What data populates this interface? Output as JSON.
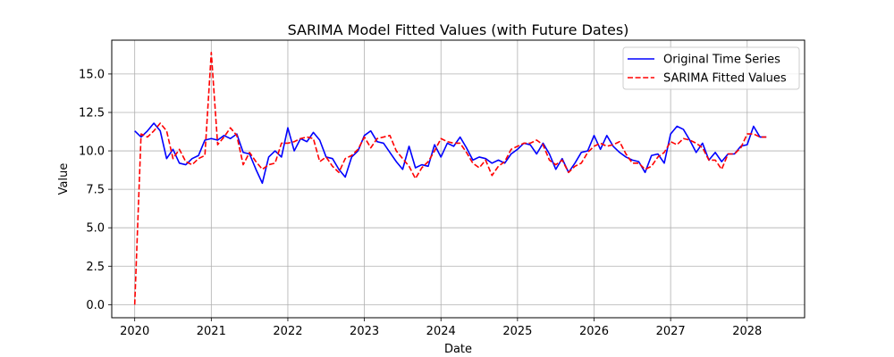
{
  "chart_data": {
    "type": "line",
    "title": "SARIMA Model Fitted Values (with Future Dates)",
    "xlabel": "Date",
    "ylabel": "Value",
    "xlim": [
      2019.7,
      2028.75
    ],
    "ylim": [
      -0.85,
      17.2
    ],
    "x_ticks": [
      2020,
      2021,
      2022,
      2023,
      2024,
      2025,
      2026,
      2027,
      2028
    ],
    "x_tick_labels": [
      "2020",
      "2021",
      "2022",
      "2023",
      "2024",
      "2025",
      "2026",
      "2027",
      "2028"
    ],
    "y_ticks": [
      0,
      2.5,
      5,
      7.5,
      10,
      12.5,
      15
    ],
    "y_tick_labels": [
      "0.0",
      "2.5",
      "5.0",
      "7.5",
      "10.0",
      "12.5",
      "15.0"
    ],
    "grid": true,
    "legend_position": "top-right",
    "x_start": "2020-01",
    "x_frequency": "monthly",
    "series": [
      {
        "name": "Original Time Series",
        "color": "#0000ff",
        "style": "solid",
        "values": [
          11.3,
          10.9,
          11.3,
          11.8,
          11.3,
          9.5,
          10.1,
          9.2,
          9.1,
          9.5,
          9.7,
          10.7,
          10.8,
          10.7,
          11.0,
          10.8,
          11.1,
          9.9,
          9.8,
          8.8,
          7.9,
          9.6,
          10.0,
          9.6,
          11.5,
          10.0,
          10.8,
          10.6,
          11.2,
          10.7,
          9.6,
          9.5,
          8.8,
          8.3,
          9.6,
          10.0,
          11.0,
          11.3,
          10.6,
          10.5,
          9.9,
          9.3,
          8.8,
          10.3,
          8.9,
          9.1,
          9.0,
          10.4,
          9.6,
          10.5,
          10.3,
          10.9,
          10.2,
          9.4,
          9.6,
          9.5,
          9.2,
          9.4,
          9.2,
          9.8,
          10.1,
          10.5,
          10.4,
          9.8,
          10.5,
          9.8,
          8.8,
          9.5,
          8.6,
          9.2,
          9.9,
          10.0,
          11.0,
          10.1,
          11.0,
          10.3,
          9.9,
          9.6,
          9.4,
          9.3,
          8.6,
          9.7,
          9.8,
          9.2,
          11.1,
          11.6,
          11.4,
          10.7,
          9.9,
          10.5,
          9.4,
          9.9,
          9.3,
          9.8,
          9.8,
          10.3,
          10.4,
          11.6,
          10.9,
          10.9
        ]
      },
      {
        "name": "SARIMA Fitted Values",
        "color": "#ff0000",
        "style": "dashed",
        "values": [
          0.0,
          11.1,
          10.9,
          11.3,
          11.8,
          11.3,
          9.5,
          10.1,
          9.3,
          9.1,
          9.5,
          9.7,
          16.4,
          10.4,
          10.9,
          11.5,
          11.0,
          9.1,
          9.9,
          9.3,
          8.8,
          9.1,
          9.2,
          10.5,
          10.5,
          10.6,
          10.8,
          10.9,
          10.8,
          9.3,
          9.6,
          9.0,
          8.6,
          9.5,
          9.7,
          10.1,
          10.9,
          10.2,
          10.8,
          10.9,
          11.0,
          10.0,
          9.5,
          9.0,
          8.2,
          8.9,
          9.3,
          10.0,
          10.8,
          10.6,
          10.5,
          10.5,
          9.9,
          9.2,
          8.9,
          9.4,
          8.4,
          9.0,
          9.3,
          10.1,
          10.3,
          10.5,
          10.5,
          10.7,
          10.4,
          9.4,
          9.1,
          9.4,
          8.6,
          9.0,
          9.2,
          9.9,
          10.3,
          10.5,
          10.3,
          10.4,
          10.6,
          9.8,
          9.2,
          9.2,
          8.8,
          9.0,
          9.6,
          9.9,
          10.6,
          10.4,
          10.8,
          10.7,
          10.5,
          10.2,
          9.4,
          9.4,
          8.8,
          9.8,
          9.8,
          10.2,
          11.1,
          11.1,
          10.9,
          10.9
        ]
      }
    ]
  }
}
